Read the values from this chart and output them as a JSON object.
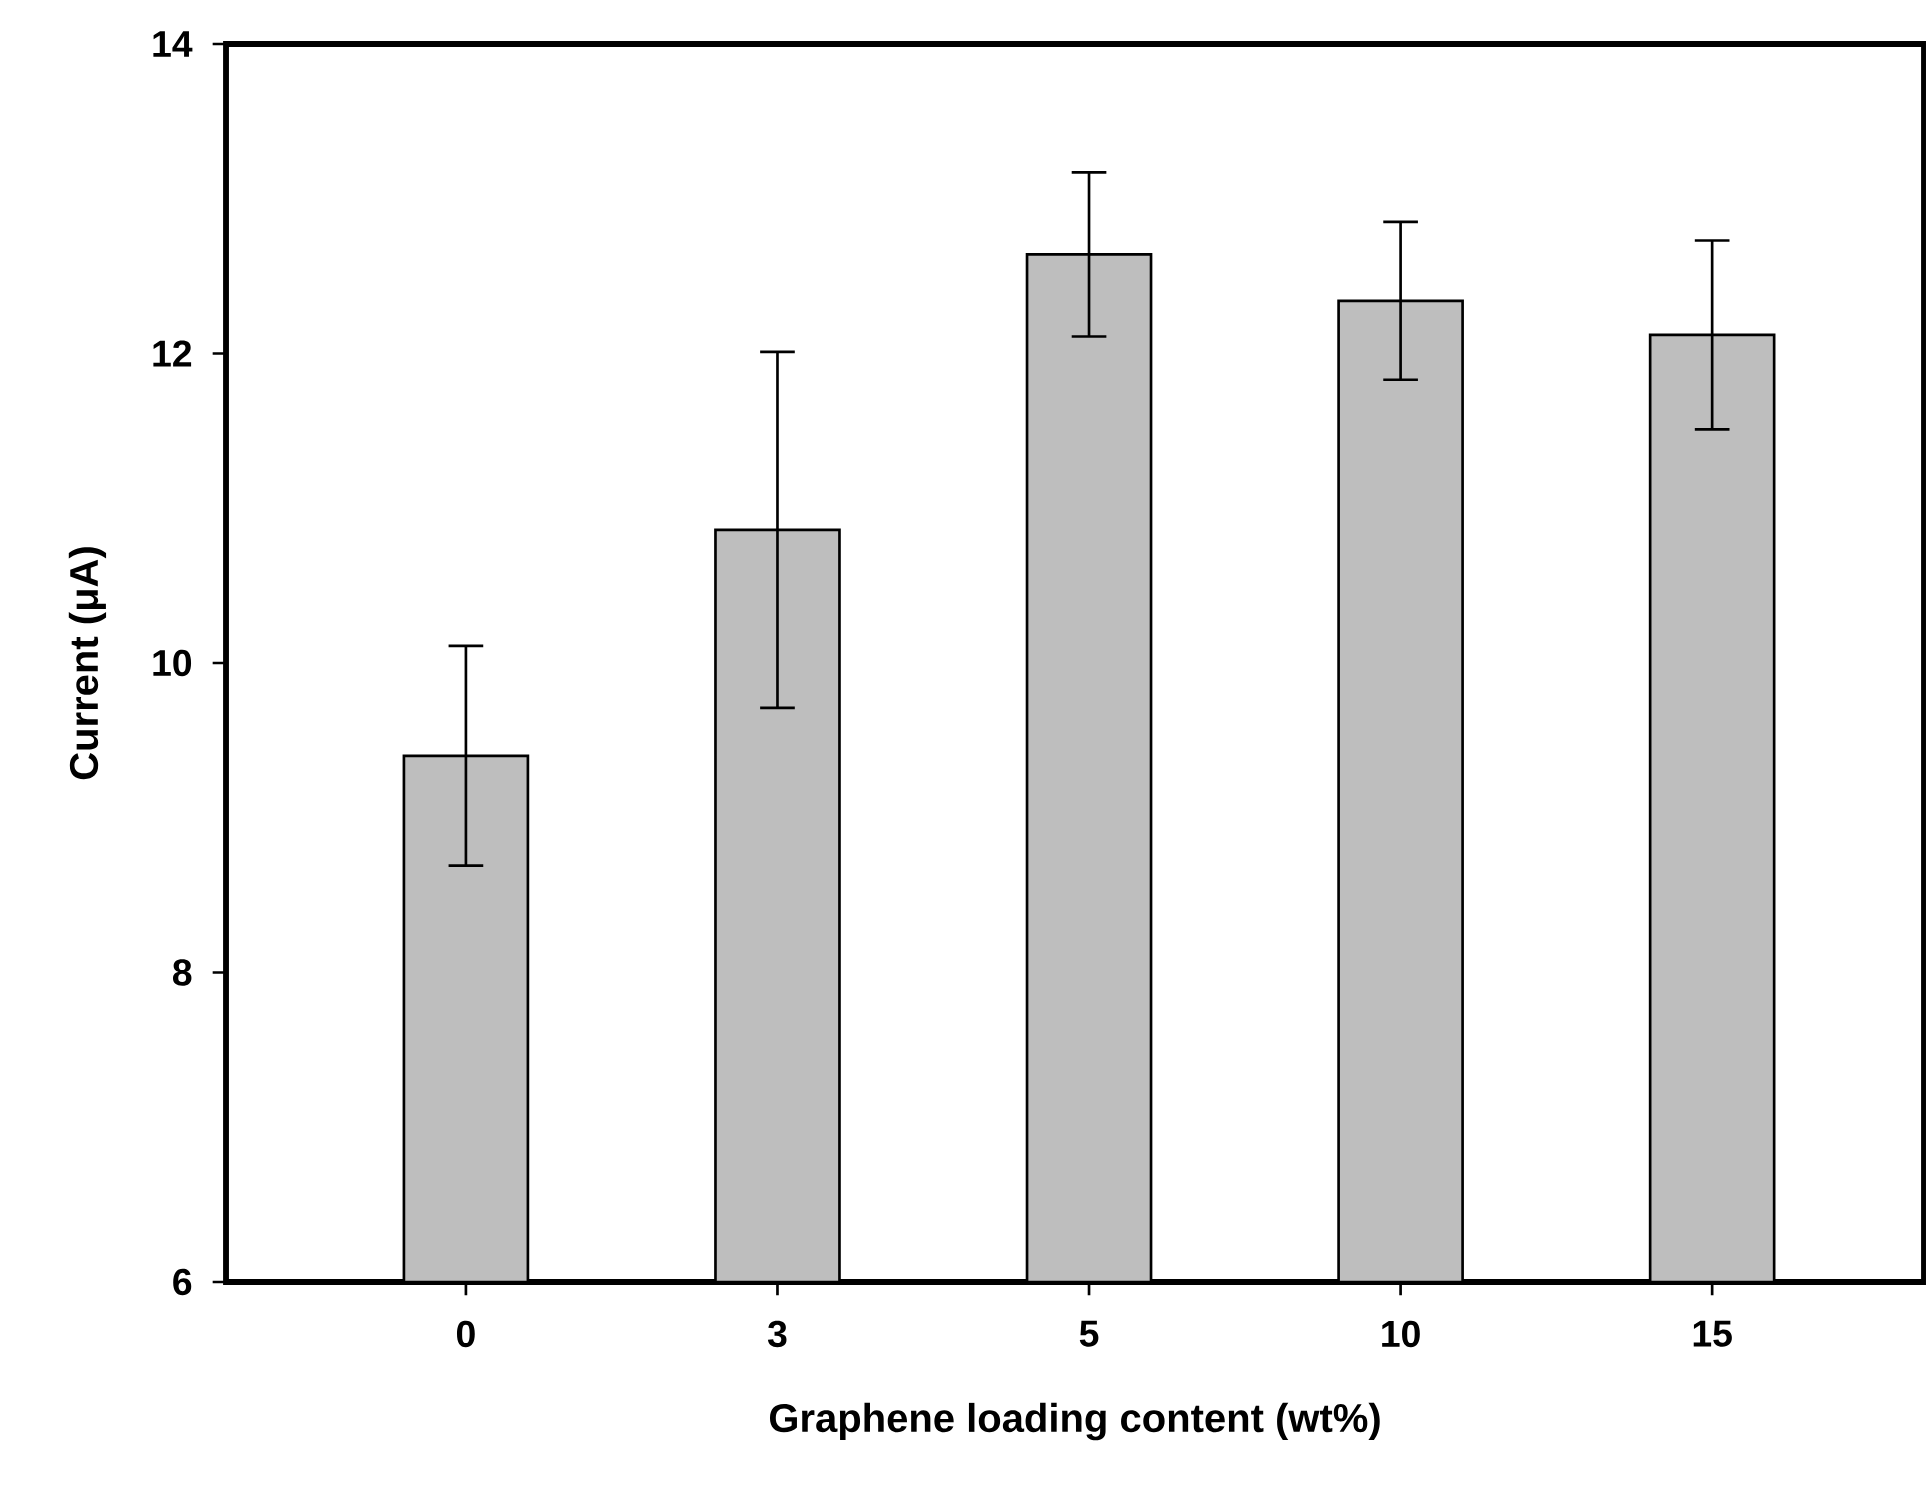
{
  "chart_data": {
    "type": "bar",
    "xlabel": "Graphene loading content (wt%)",
    "ylabel": "Current (μA)",
    "categories": [
      "0",
      "3",
      "5",
      "10",
      "15"
    ],
    "values": [
      9.4,
      10.86,
      12.64,
      12.34,
      12.12
    ],
    "errors": [
      0.71,
      1.15,
      0.53,
      0.51,
      0.61
    ],
    "color": "#bebebe",
    "ylim": [
      6,
      14
    ],
    "yticks": [
      6,
      8,
      10,
      12,
      14
    ],
    "grid": false
  }
}
